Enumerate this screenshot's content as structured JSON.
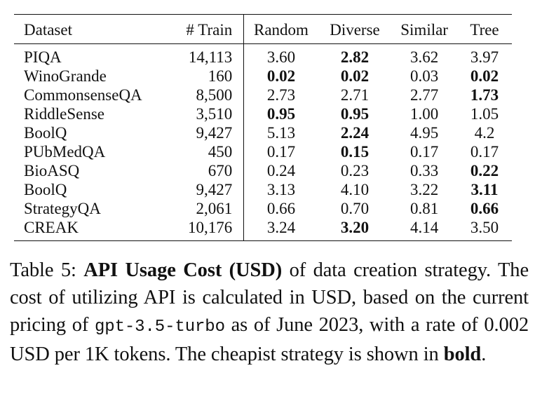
{
  "table": {
    "headers": {
      "dataset": "Dataset",
      "train": "# Train",
      "random": "Random",
      "diverse": "Diverse",
      "similar": "Similar",
      "tree": "Tree"
    },
    "rows": [
      {
        "dataset": "PIQA",
        "train": "14,113",
        "random": "3.60",
        "diverse": "2.82",
        "similar": "3.62",
        "tree": "3.97",
        "bold": [
          "diverse"
        ]
      },
      {
        "dataset": "WinoGrande",
        "train": "160",
        "random": "0.02",
        "diverse": "0.02",
        "similar": "0.03",
        "tree": "0.02",
        "bold": [
          "random",
          "diverse",
          "tree"
        ]
      },
      {
        "dataset": "CommonsenseQA",
        "train": "8,500",
        "random": "2.73",
        "diverse": "2.71",
        "similar": "2.77",
        "tree": "1.73",
        "bold": [
          "tree"
        ]
      },
      {
        "dataset": "RiddleSense",
        "train": "3,510",
        "random": "0.95",
        "diverse": "0.95",
        "similar": "1.00",
        "tree": "1.05",
        "bold": [
          "random",
          "diverse"
        ]
      },
      {
        "dataset": "BoolQ",
        "train": "9,427",
        "random": "5.13",
        "diverse": "2.24",
        "similar": "4.95",
        "tree": "4.2",
        "bold": [
          "diverse"
        ]
      },
      {
        "dataset": "PUbMedQA",
        "train": "450",
        "random": "0.17",
        "diverse": "0.15",
        "similar": "0.17",
        "tree": "0.17",
        "bold": [
          "diverse"
        ]
      },
      {
        "dataset": "BioASQ",
        "train": "670",
        "random": "0.24",
        "diverse": "0.23",
        "similar": "0.33",
        "tree": "0.22",
        "bold": [
          "tree"
        ]
      },
      {
        "dataset": "BoolQ",
        "train": "9,427",
        "random": "3.13",
        "diverse": "4.10",
        "similar": "3.22",
        "tree": "3.11",
        "bold": [
          "tree"
        ]
      },
      {
        "dataset": "StrategyQA",
        "train": "2,061",
        "random": "0.66",
        "diverse": "0.70",
        "similar": "0.81",
        "tree": "0.66",
        "bold": [
          "tree"
        ]
      },
      {
        "dataset": "CREAK",
        "train": "10,176",
        "random": "3.24",
        "diverse": "3.20",
        "similar": "4.14",
        "tree": "3.50",
        "bold": [
          "diverse"
        ]
      }
    ]
  },
  "caption": {
    "label": "Table 5:",
    "title": "API Usage Cost (USD)",
    "text_1": "of data creation strategy. The cost of utilizing API is calculated in USD, based on the current pricing of",
    "model": "gpt-3.5-turbo",
    "text_2": "as of June 2023, with a rate of 0.002 USD per 1K tokens. The cheapist strategy is shown in",
    "emphasis": "bold",
    "end": "."
  }
}
